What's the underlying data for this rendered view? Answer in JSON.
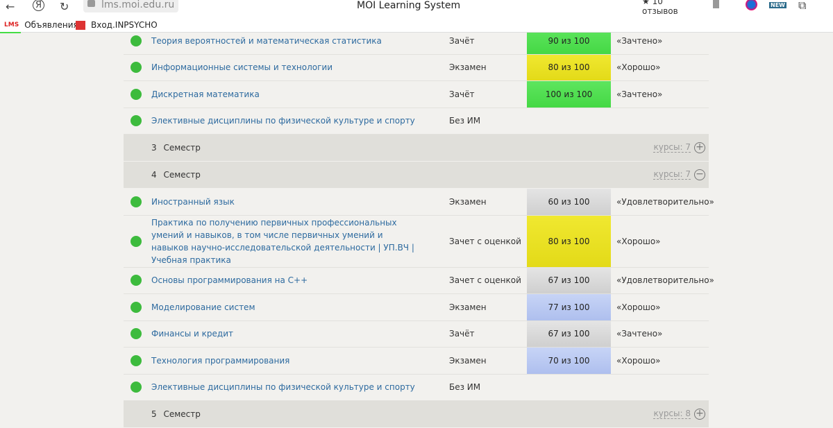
{
  "browser": {
    "url": "lms.moi.edu.ru",
    "title": "MOI Learning System",
    "reviews": "★ 10 отзывов"
  },
  "bookmarks": [
    {
      "icon": "LMS",
      "label": "Объявления"
    },
    {
      "label": "Вход.INPSYCHO"
    }
  ],
  "rows_a": [
    {
      "name": "Теория вероятностей и математическая статистика",
      "type": "Зачёт",
      "score": "90 из 100",
      "result": "«Зачтено»",
      "color": "g"
    },
    {
      "name": "Информационные системы и технологии",
      "type": "Экзамен",
      "score": "80 из 100",
      "result": "«Хорошо»",
      "color": "y"
    },
    {
      "name": "Дискретная математика",
      "type": "Зачёт",
      "score": "100 из 100",
      "result": "«Зачтено»",
      "color": "g"
    },
    {
      "name": "Элективные дисциплины по физической культуре и спорту",
      "type": "Без ИМ",
      "score": "",
      "result": "",
      "color": ""
    }
  ],
  "semesters": [
    {
      "num": "3",
      "label": "Семестр",
      "courses": "курсы: 7",
      "toggle": "+"
    },
    {
      "num": "4",
      "label": "Семестр",
      "courses": "курсы: 7",
      "toggle": "−"
    },
    {
      "num": "5",
      "label": "Семестр",
      "courses": "курсы: 8",
      "toggle": "+"
    }
  ],
  "rows_b": [
    {
      "name": "Иностранный язык",
      "type": "Экзамен",
      "score": "60 из 100",
      "result": "«Удовлетворительно»",
      "color": "s"
    },
    {
      "name": "Практика по получению первичных профессиональных умений и навыков, в том числе первичных умений и навыков научно-исследовательской деятельности | УП.ВЧ | Учебная практика",
      "type": "Зачет с оценкой",
      "score": "80 из 100",
      "result": "«Хорошо»",
      "color": "y"
    },
    {
      "name": "Основы программирования на С++",
      "type": "Зачет с оценкой",
      "score": "67 из 100",
      "result": "«Удовлетворительно»",
      "color": "s"
    },
    {
      "name": "Моделирование систем",
      "type": "Экзамен",
      "score": "77 из 100",
      "result": "«Хорошо»",
      "color": "b"
    },
    {
      "name": "Финансы и кредит",
      "type": "Зачёт",
      "score": "67 из 100",
      "result": "«Зачтено»",
      "color": "s"
    },
    {
      "name": "Технология программирования",
      "type": "Экзамен",
      "score": "70 из 100",
      "result": "«Хорошо»",
      "color": "b"
    },
    {
      "name": "Элективные дисциплины по физической культуре и спорту",
      "type": "Без ИМ",
      "score": "",
      "result": "",
      "color": ""
    }
  ]
}
